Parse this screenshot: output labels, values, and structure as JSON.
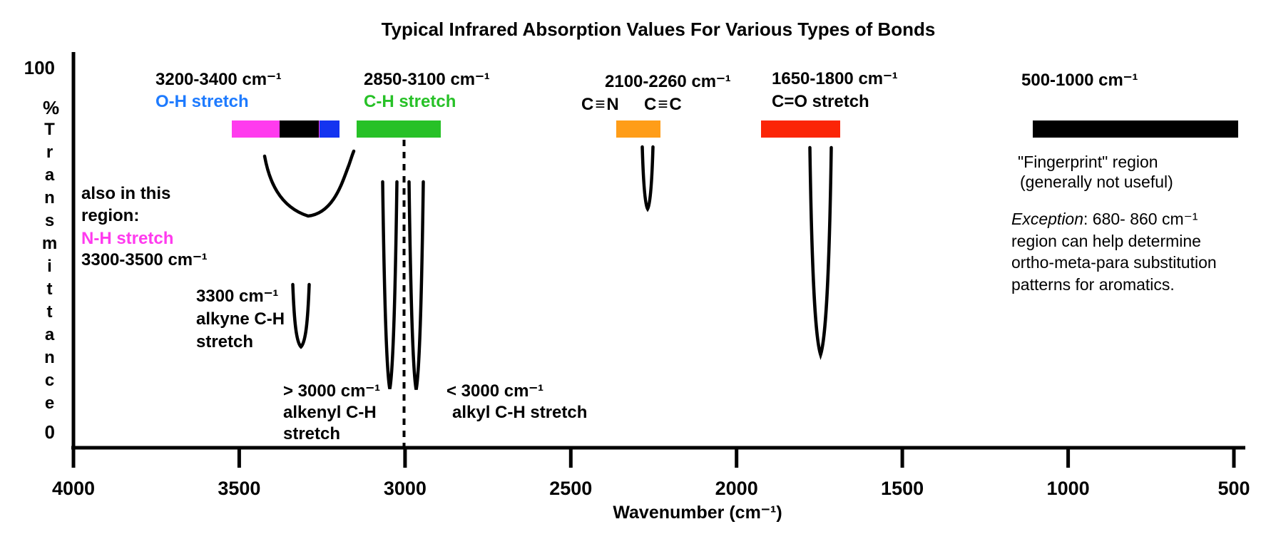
{
  "labels": {
    "title": "Typical Infrared Absorption Values For Various Types of Bonds",
    "y_max": "100",
    "y_min": "0",
    "percent_sign": "%",
    "transmittance": "Transmittance",
    "xlabel": "Wavenumber (cm⁻¹)",
    "oh_range": "3200-3400 cm⁻¹",
    "oh_label": "O-H stretch",
    "ch_range": "2850-3100 cm⁻¹",
    "ch_label": "C-H stretch",
    "also_line1": "also in this",
    "also_line2": "region:",
    "nh_label": "N-H stretch",
    "nh_range": "3300-3500 cm⁻¹",
    "alkyne_range": "3300 cm⁻¹",
    "alkyne_line1": "alkyne C-H",
    "alkyne_line2": "stretch",
    "alkenyl_line1": "> 3000 cm⁻¹",
    "alkenyl_line2": "alkenyl C-H",
    "alkenyl_line3": "stretch",
    "alkyl_line1": "< 3000 cm⁻¹",
    "alkyl_line2": "alkyl C-H stretch",
    "triple_range": "2100-2260 cm⁻¹",
    "nitrile_formula": "C≡N",
    "alkyne_formula": "C≡C",
    "co_range": "1650-1800 cm⁻¹",
    "co_label": "C=O stretch",
    "fp_range": "500-1000 cm⁻¹",
    "fp_note1": "\"Fingerprint\" region",
    "fp_note2": "(generally not useful)",
    "exception_word": "Exception",
    "exception_line1_rest": ": 680- 860 cm⁻¹",
    "exception_line2": "region can help determine",
    "exception_line3": "ortho-meta-para substitution",
    "exception_line4": "patterns for aromatics."
  },
  "colors": {
    "oh_bar": "#1434f0",
    "oh_text": "#1e7bff",
    "ch_bar": "#27c127",
    "nh_bar": "#ff3bee",
    "alkyne_bar": "#000000",
    "triple_bar": "#ff9d18",
    "co_bar": "#fb2507",
    "fingerprint_bar": "#000000",
    "axis": "#000000"
  },
  "chart_data": {
    "type": "area",
    "subtype": "annotated IR transmittance schematic",
    "title": "Typical Infrared Absorption Values For Various Types of Bonds",
    "xlabel": "Wavenumber (cm⁻¹)",
    "ylabel": "% Transmittance",
    "xlim": [
      4000,
      500
    ],
    "x_axis_reversed": true,
    "x_ticks": [
      4000,
      3500,
      3000,
      2500,
      2000,
      1500,
      1000,
      500
    ],
    "ylim": [
      0,
      100
    ],
    "y_ticks": [
      0,
      100
    ],
    "grid": false,
    "legend": false,
    "reference_line_cm1": 3000,
    "bands": [
      {
        "name": "O-H stretch",
        "range_label": "3200-3400 cm⁻¹",
        "range_cm1": [
          3200,
          3400
        ],
        "color": "#1434f0",
        "visual_span_cm1": [
          3438,
          3197
        ]
      },
      {
        "name": "C-H stretch",
        "range_label": "2850-3100 cm⁻¹",
        "range_cm1": [
          2850,
          3100
        ],
        "color": "#27c127",
        "visual_span_cm1": [
          3147,
          2893
        ]
      },
      {
        "name": "N-H stretch (also in this region)",
        "range_label": "3300-3500 cm⁻¹",
        "range_cm1": [
          3300,
          3500
        ],
        "color": "#ff3bee",
        "visual_span_cm1": [
          3522,
          3257
        ]
      },
      {
        "name": "alkyne C-H stretch",
        "range_label": "3300 cm⁻¹",
        "range_cm1": [
          3300,
          3300
        ],
        "color": "#000000",
        "visual_span_cm1": [
          3378,
          3259
        ]
      },
      {
        "name": "C≡N / C≡C stretch",
        "range_label": "2100-2260 cm⁻¹",
        "range_cm1": [
          2100,
          2260
        ],
        "color": "#ff9d18",
        "visual_span_cm1": [
          2362,
          2230
        ]
      },
      {
        "name": "C=O stretch",
        "range_label": "1650-1800 cm⁻¹",
        "range_cm1": [
          1650,
          1800
        ],
        "color": "#fb2507",
        "visual_span_cm1": [
          1927,
          1688
        ]
      },
      {
        "name": "\"Fingerprint\" region (generally not useful)",
        "range_label": "500-1000 cm⁻¹",
        "range_cm1": [
          500,
          1000
        ],
        "color": "#000000",
        "visual_span_cm1": [
          1107,
          487
        ]
      }
    ],
    "dips": [
      {
        "assignment": "O-H stretch (broad)",
        "center_cm1": 3285,
        "min_transmittance_pct": 61,
        "shape": "broad"
      },
      {
        "assignment": "alkyne C-H stretch",
        "center_cm1": 3313,
        "min_transmittance_pct": 27,
        "shape": "narrow"
      },
      {
        "assignment": "alkenyl C-H stretch (> 3000 cm⁻¹)",
        "center_cm1": 3046,
        "min_transmittance_pct": 16,
        "shape": "narrow"
      },
      {
        "assignment": "alkyl C-H stretch (< 3000 cm⁻¹)",
        "center_cm1": 2969,
        "min_transmittance_pct": 15,
        "shape": "narrow"
      },
      {
        "assignment": "C≡N / C≡C stretch",
        "center_cm1": 2267,
        "min_transmittance_pct": 63,
        "shape": "narrow"
      },
      {
        "assignment": "C=O stretch",
        "center_cm1": 1746,
        "min_transmittance_pct": 25,
        "shape": "narrow"
      }
    ],
    "annotations": [
      "also in this region: N-H stretch 3300-3500 cm⁻¹",
      "3300 cm⁻¹ alkyne C-H stretch",
      "> 3000 cm⁻¹ alkenyl C-H stretch",
      "< 3000 cm⁻¹ alkyl C-H stretch",
      "\"Fingerprint\" region (generally not useful)",
      "Exception: 680- 860 cm⁻¹ region can help determine ortho-meta-para substitution patterns for aromatics."
    ]
  }
}
